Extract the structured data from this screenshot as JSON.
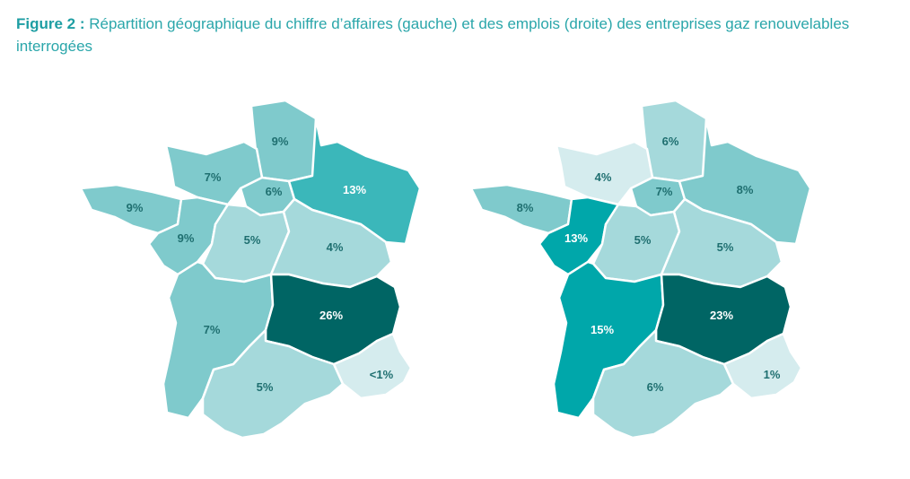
{
  "caption": {
    "lead": "Figure 2 :",
    "text": " Répartition géographique du chiffre d’affaires (gauche) et des emplois (droite) des entreprises gaz renouvelables interrogées"
  },
  "colors": {
    "level_1": "#d5ecee",
    "level_2": "#a5d9db",
    "level_3": "#7fcacc",
    "level_4": "#3bb7ba",
    "level_5": "#00a7aa",
    "level_6": "#006564",
    "label_dark": "#1f6f70",
    "label_light": "#ffffff"
  },
  "maps": {
    "left": {
      "regions": {
        "hauts_de_france": {
          "value": "9%",
          "level": 3
        },
        "normandie": {
          "value": "7%",
          "level": 3
        },
        "ile_de_france": {
          "value": "6%",
          "level": 3
        },
        "grand_est": {
          "value": "13%",
          "level": 4
        },
        "bretagne": {
          "value": "9%",
          "level": 3
        },
        "pays_de_la_loire": {
          "value": "9%",
          "level": 3
        },
        "centre_val_de_loire": {
          "value": "5%",
          "level": 2
        },
        "bourgogne_franche_comte": {
          "value": "4%",
          "level": 2
        },
        "nouvelle_aquitaine": {
          "value": "7%",
          "level": 3
        },
        "auvergne_rhone_alpes": {
          "value": "26%",
          "level": 6
        },
        "occitanie": {
          "value": "5%",
          "level": 2
        },
        "paca": {
          "value": "<1%",
          "level": 1
        }
      }
    },
    "right": {
      "regions": {
        "hauts_de_france": {
          "value": "6%",
          "level": 2
        },
        "normandie": {
          "value": "4%",
          "level": 1
        },
        "ile_de_france": {
          "value": "7%",
          "level": 3
        },
        "grand_est": {
          "value": "8%",
          "level": 3
        },
        "bretagne": {
          "value": "8%",
          "level": 3
        },
        "pays_de_la_loire": {
          "value": "13%",
          "level": 5
        },
        "centre_val_de_loire": {
          "value": "5%",
          "level": 2
        },
        "bourgogne_franche_comte": {
          "value": "5%",
          "level": 2
        },
        "nouvelle_aquitaine": {
          "value": "15%",
          "level": 5
        },
        "auvergne_rhone_alpes": {
          "value": "23%",
          "level": 6
        },
        "occitanie": {
          "value": "6%",
          "level": 2
        },
        "paca": {
          "value": "1%",
          "level": 1
        }
      }
    }
  }
}
